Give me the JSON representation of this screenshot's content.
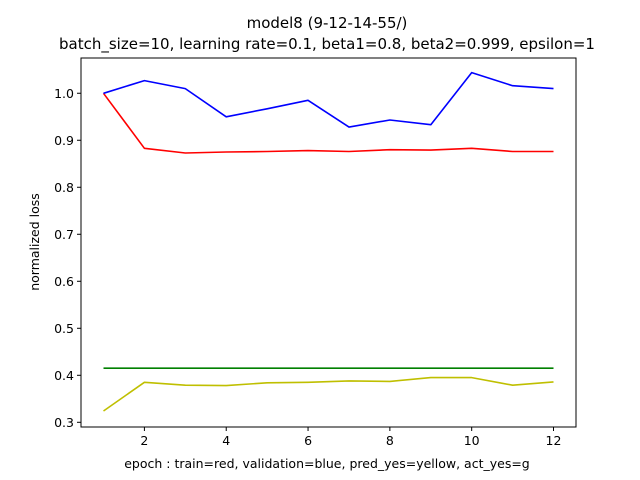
{
  "chart_data": {
    "type": "line",
    "title": "model8 (9-12-14-55/)",
    "subtitle": "batch_size=10, learning rate=0.1, beta1=0.8, beta2=0.999, epsilon=1",
    "xlabel": "epoch : train=red, validation=blue, pred_yes=yellow, act_yes=g",
    "ylabel": "normalized loss",
    "xlim": [
      0.45,
      12.55
    ],
    "ylim": [
      0.29,
      1.075
    ],
    "xticks": [
      2,
      4,
      6,
      8,
      10,
      12
    ],
    "yticks": [
      0.3,
      0.4,
      0.5,
      0.6,
      0.7,
      0.8,
      0.9,
      1.0
    ],
    "ytick_labels": [
      "0.3",
      "0.4",
      "0.5",
      "0.6",
      "0.7",
      "0.8",
      "0.9",
      "1.0"
    ],
    "grid": false,
    "x": [
      1,
      2,
      3,
      4,
      5,
      6,
      7,
      8,
      9,
      10,
      11,
      12
    ],
    "series": [
      {
        "color": "#ff0000",
        "values": [
          1.0,
          0.883,
          0.873,
          0.875,
          0.876,
          0.878,
          0.876,
          0.88,
          0.879,
          0.883,
          0.876,
          0.876
        ]
      },
      {
        "color": "#0000ff",
        "values": [
          1.0,
          1.027,
          1.01,
          0.95,
          0.967,
          0.985,
          0.928,
          0.943,
          0.933,
          1.044,
          1.016,
          1.01
        ]
      },
      {
        "color": "#bfbf00",
        "values": [
          0.324,
          0.385,
          0.379,
          0.378,
          0.384,
          0.385,
          0.388,
          0.387,
          0.395,
          0.395,
          0.379,
          0.386
        ]
      },
      {
        "color": "#008000",
        "values": [
          0.415,
          0.415,
          0.415,
          0.415,
          0.415,
          0.415,
          0.415,
          0.415,
          0.415,
          0.415,
          0.415,
          0.415
        ]
      }
    ]
  }
}
